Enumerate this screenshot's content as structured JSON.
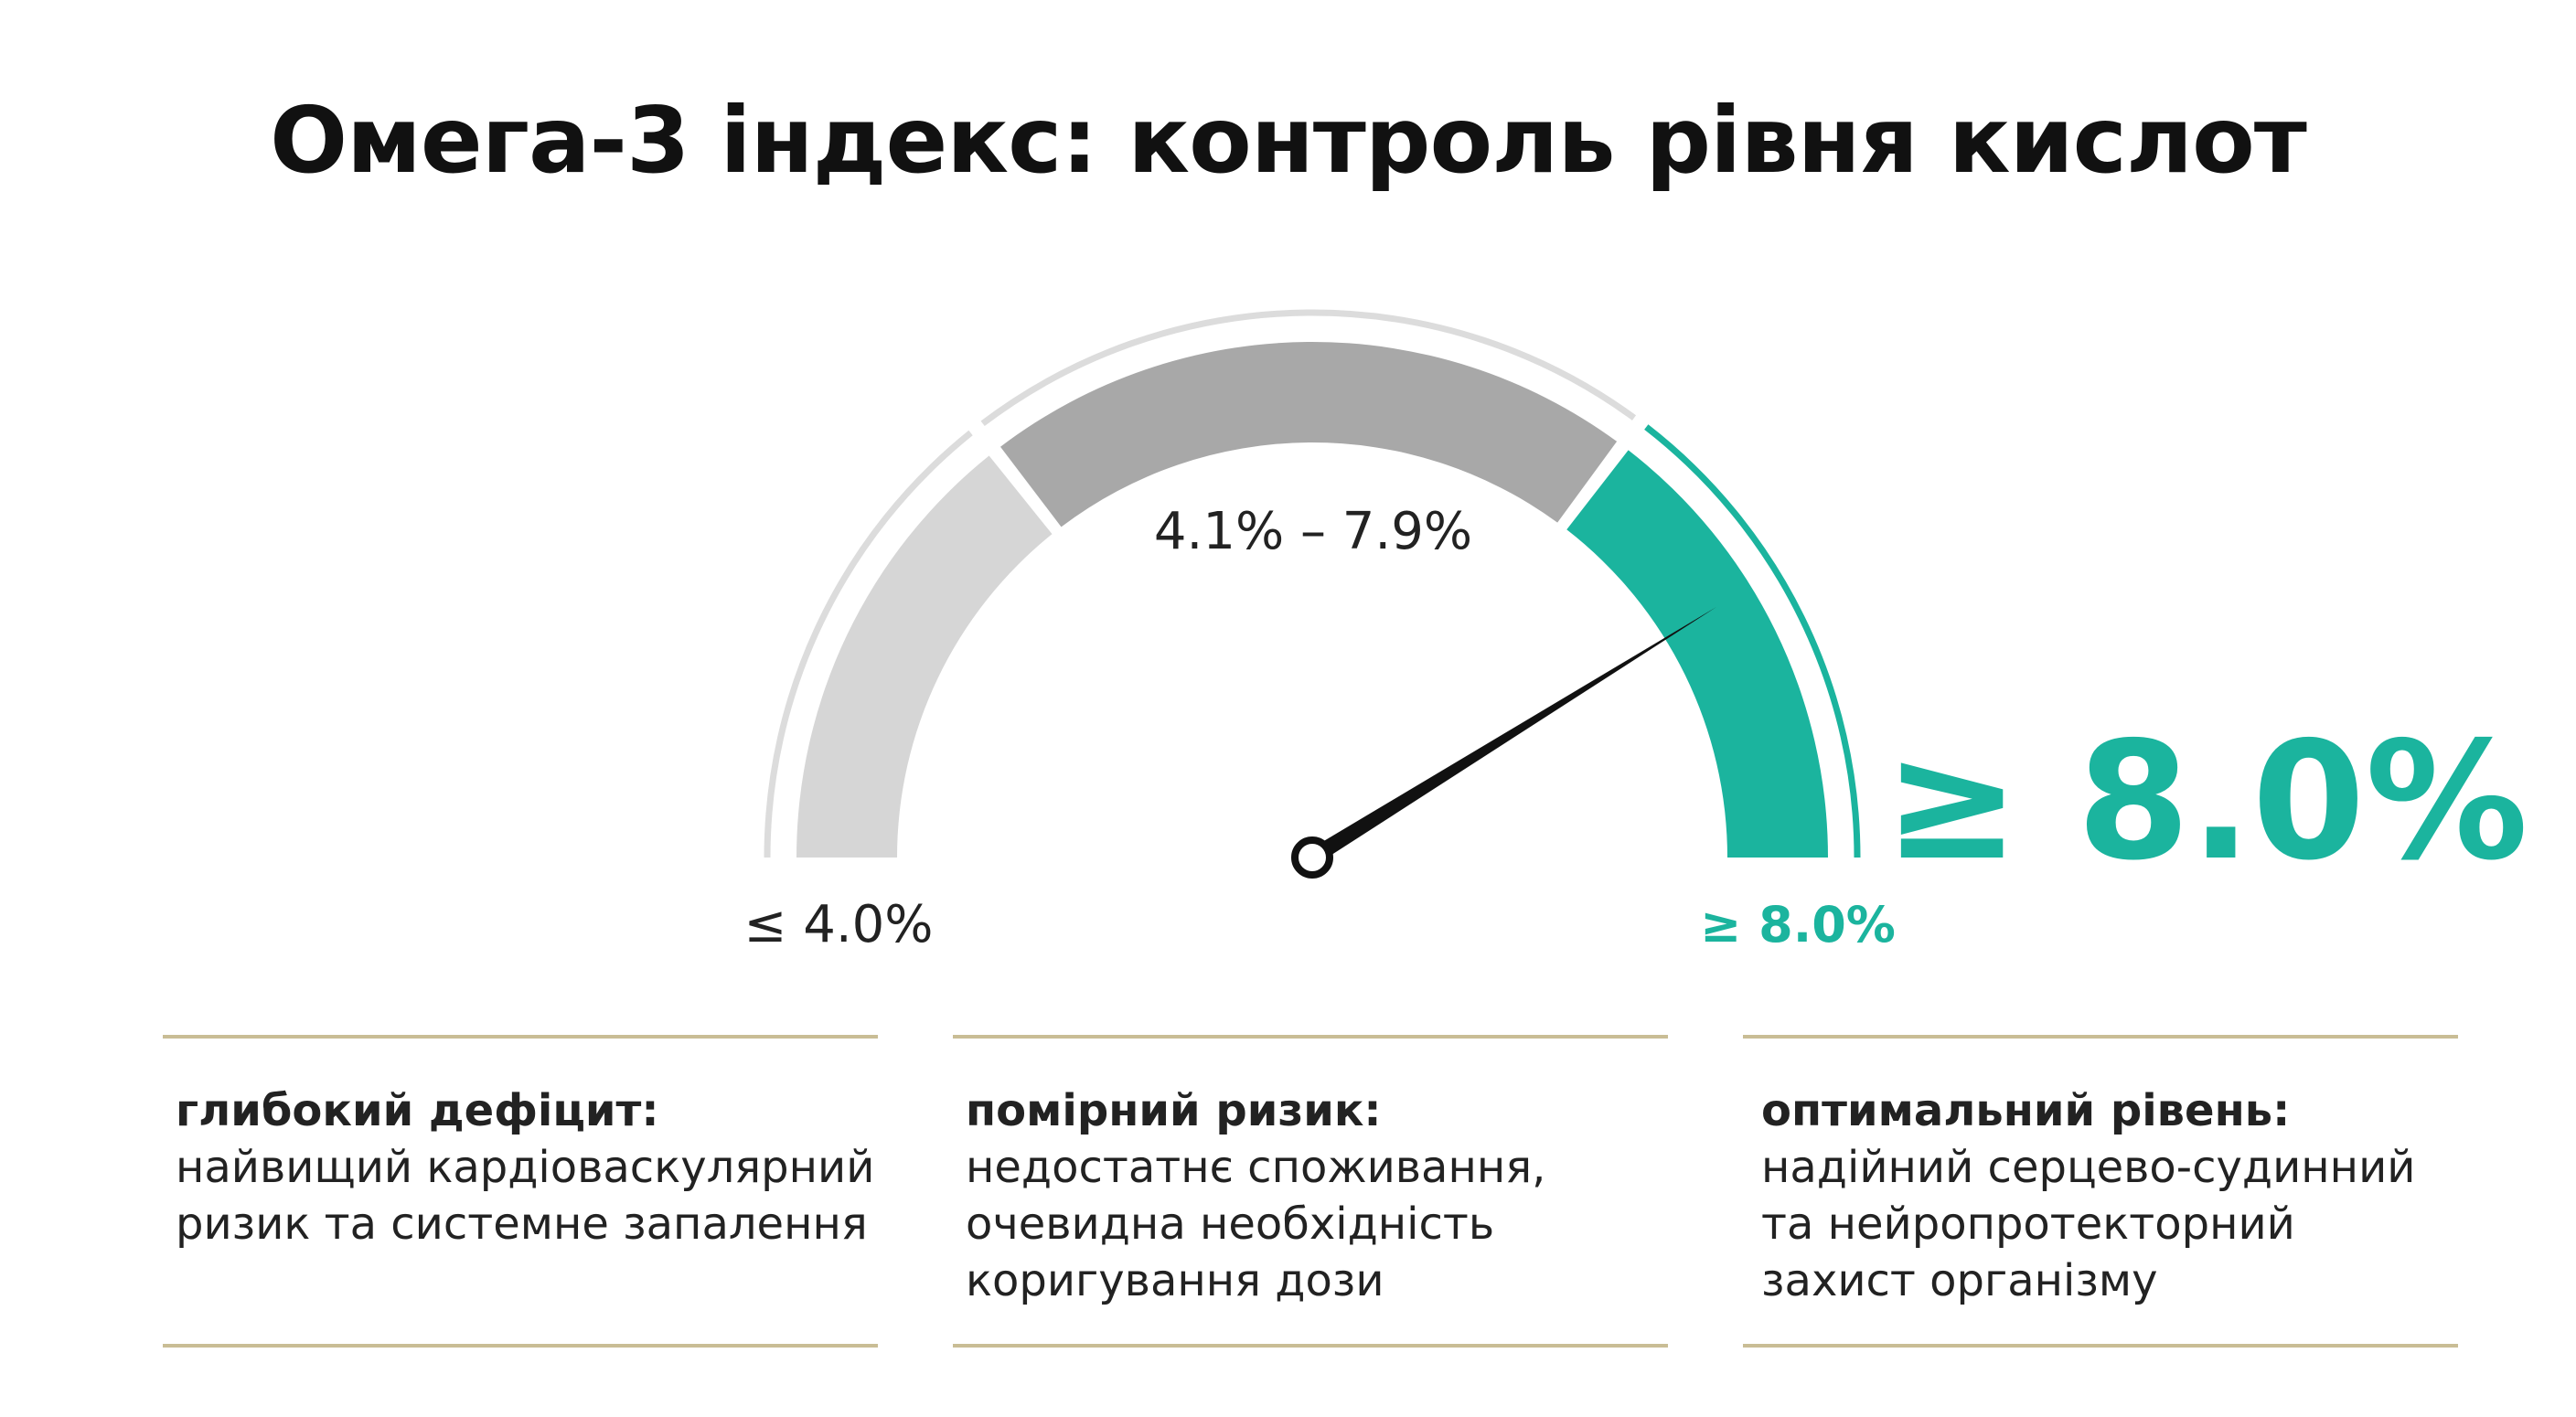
{
  "title": "Омега-3 індекс: контроль рівня кислот",
  "colors": {
    "low": "#d6d6d6",
    "mid": "#a8a8a8",
    "high": "#1bb49e",
    "outline": "#dcdcdc",
    "needle": "#111111",
    "rule": "#c9bd95"
  },
  "chart_data": {
    "type": "gauge",
    "segments": [
      {
        "label": "≤ 4.0%",
        "color": "#d6d6d6"
      },
      {
        "label": "4.1% – 7.9%",
        "color": "#a8a8a8"
      },
      {
        "label": "≥ 8.0%",
        "color": "#1bb49e"
      }
    ],
    "needle_zone": "≥ 8.0%",
    "highlight": "≥ 8.0%"
  },
  "columns": [
    {
      "heading": "глибокий дефіцит:",
      "lines": [
        "найвищий кардіоваскулярний",
        "ризик та системне запалення"
      ]
    },
    {
      "heading": "помірний ризик:",
      "lines": [
        "недостатнє споживання,",
        "очевидна необхідність",
        "коригування дози"
      ]
    },
    {
      "heading": "оптимальний рівень:",
      "lines": [
        "надійний серцево-судинний",
        "та нейропротекторний",
        "захист організму"
      ]
    }
  ]
}
